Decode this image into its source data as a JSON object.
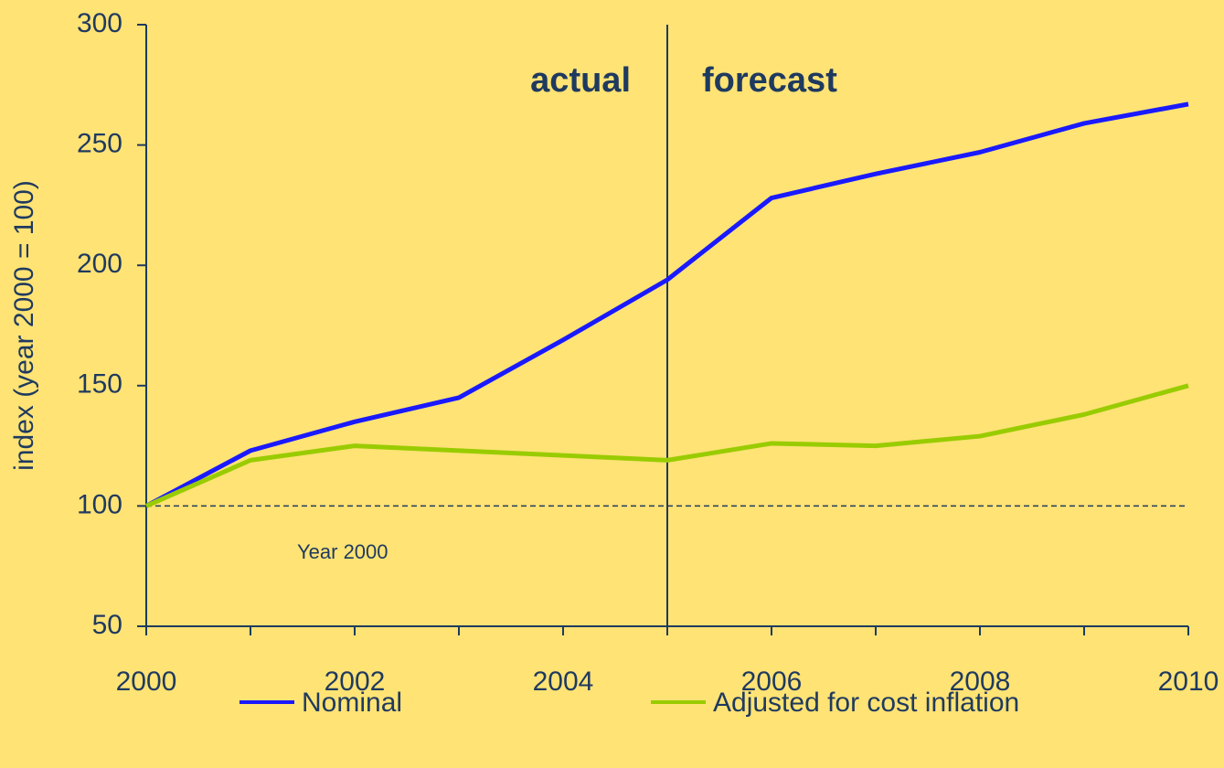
{
  "chart_data": {
    "type": "line",
    "y_label": "index (year 2000 = 100)",
    "x": [
      2000,
      2001,
      2002,
      2003,
      2004,
      2005,
      2006,
      2007,
      2008,
      2009,
      2010
    ],
    "series": [
      {
        "name": "Nominal",
        "color": "#1a1aff",
        "values": [
          100,
          123,
          135,
          145,
          169,
          194,
          228,
          238,
          247,
          259,
          267
        ]
      },
      {
        "name": "Adjusted for cost inflation",
        "color": "#99cc00",
        "values": [
          100,
          119,
          125,
          123,
          121,
          119,
          126,
          125,
          129,
          138,
          150
        ]
      }
    ],
    "xlim": [
      2000,
      2010
    ],
    "xticks": [
      2000,
      2002,
      2004,
      2006,
      2008,
      2010
    ],
    "ylim": [
      50,
      300
    ],
    "yticks": [
      50,
      100,
      150,
      200,
      250,
      300
    ],
    "reference_line": {
      "value": 100,
      "label": "Year 2000"
    },
    "divider": {
      "value": 2005,
      "left_label": "actual",
      "right_label": "forecast"
    },
    "legend": "bottom"
  }
}
